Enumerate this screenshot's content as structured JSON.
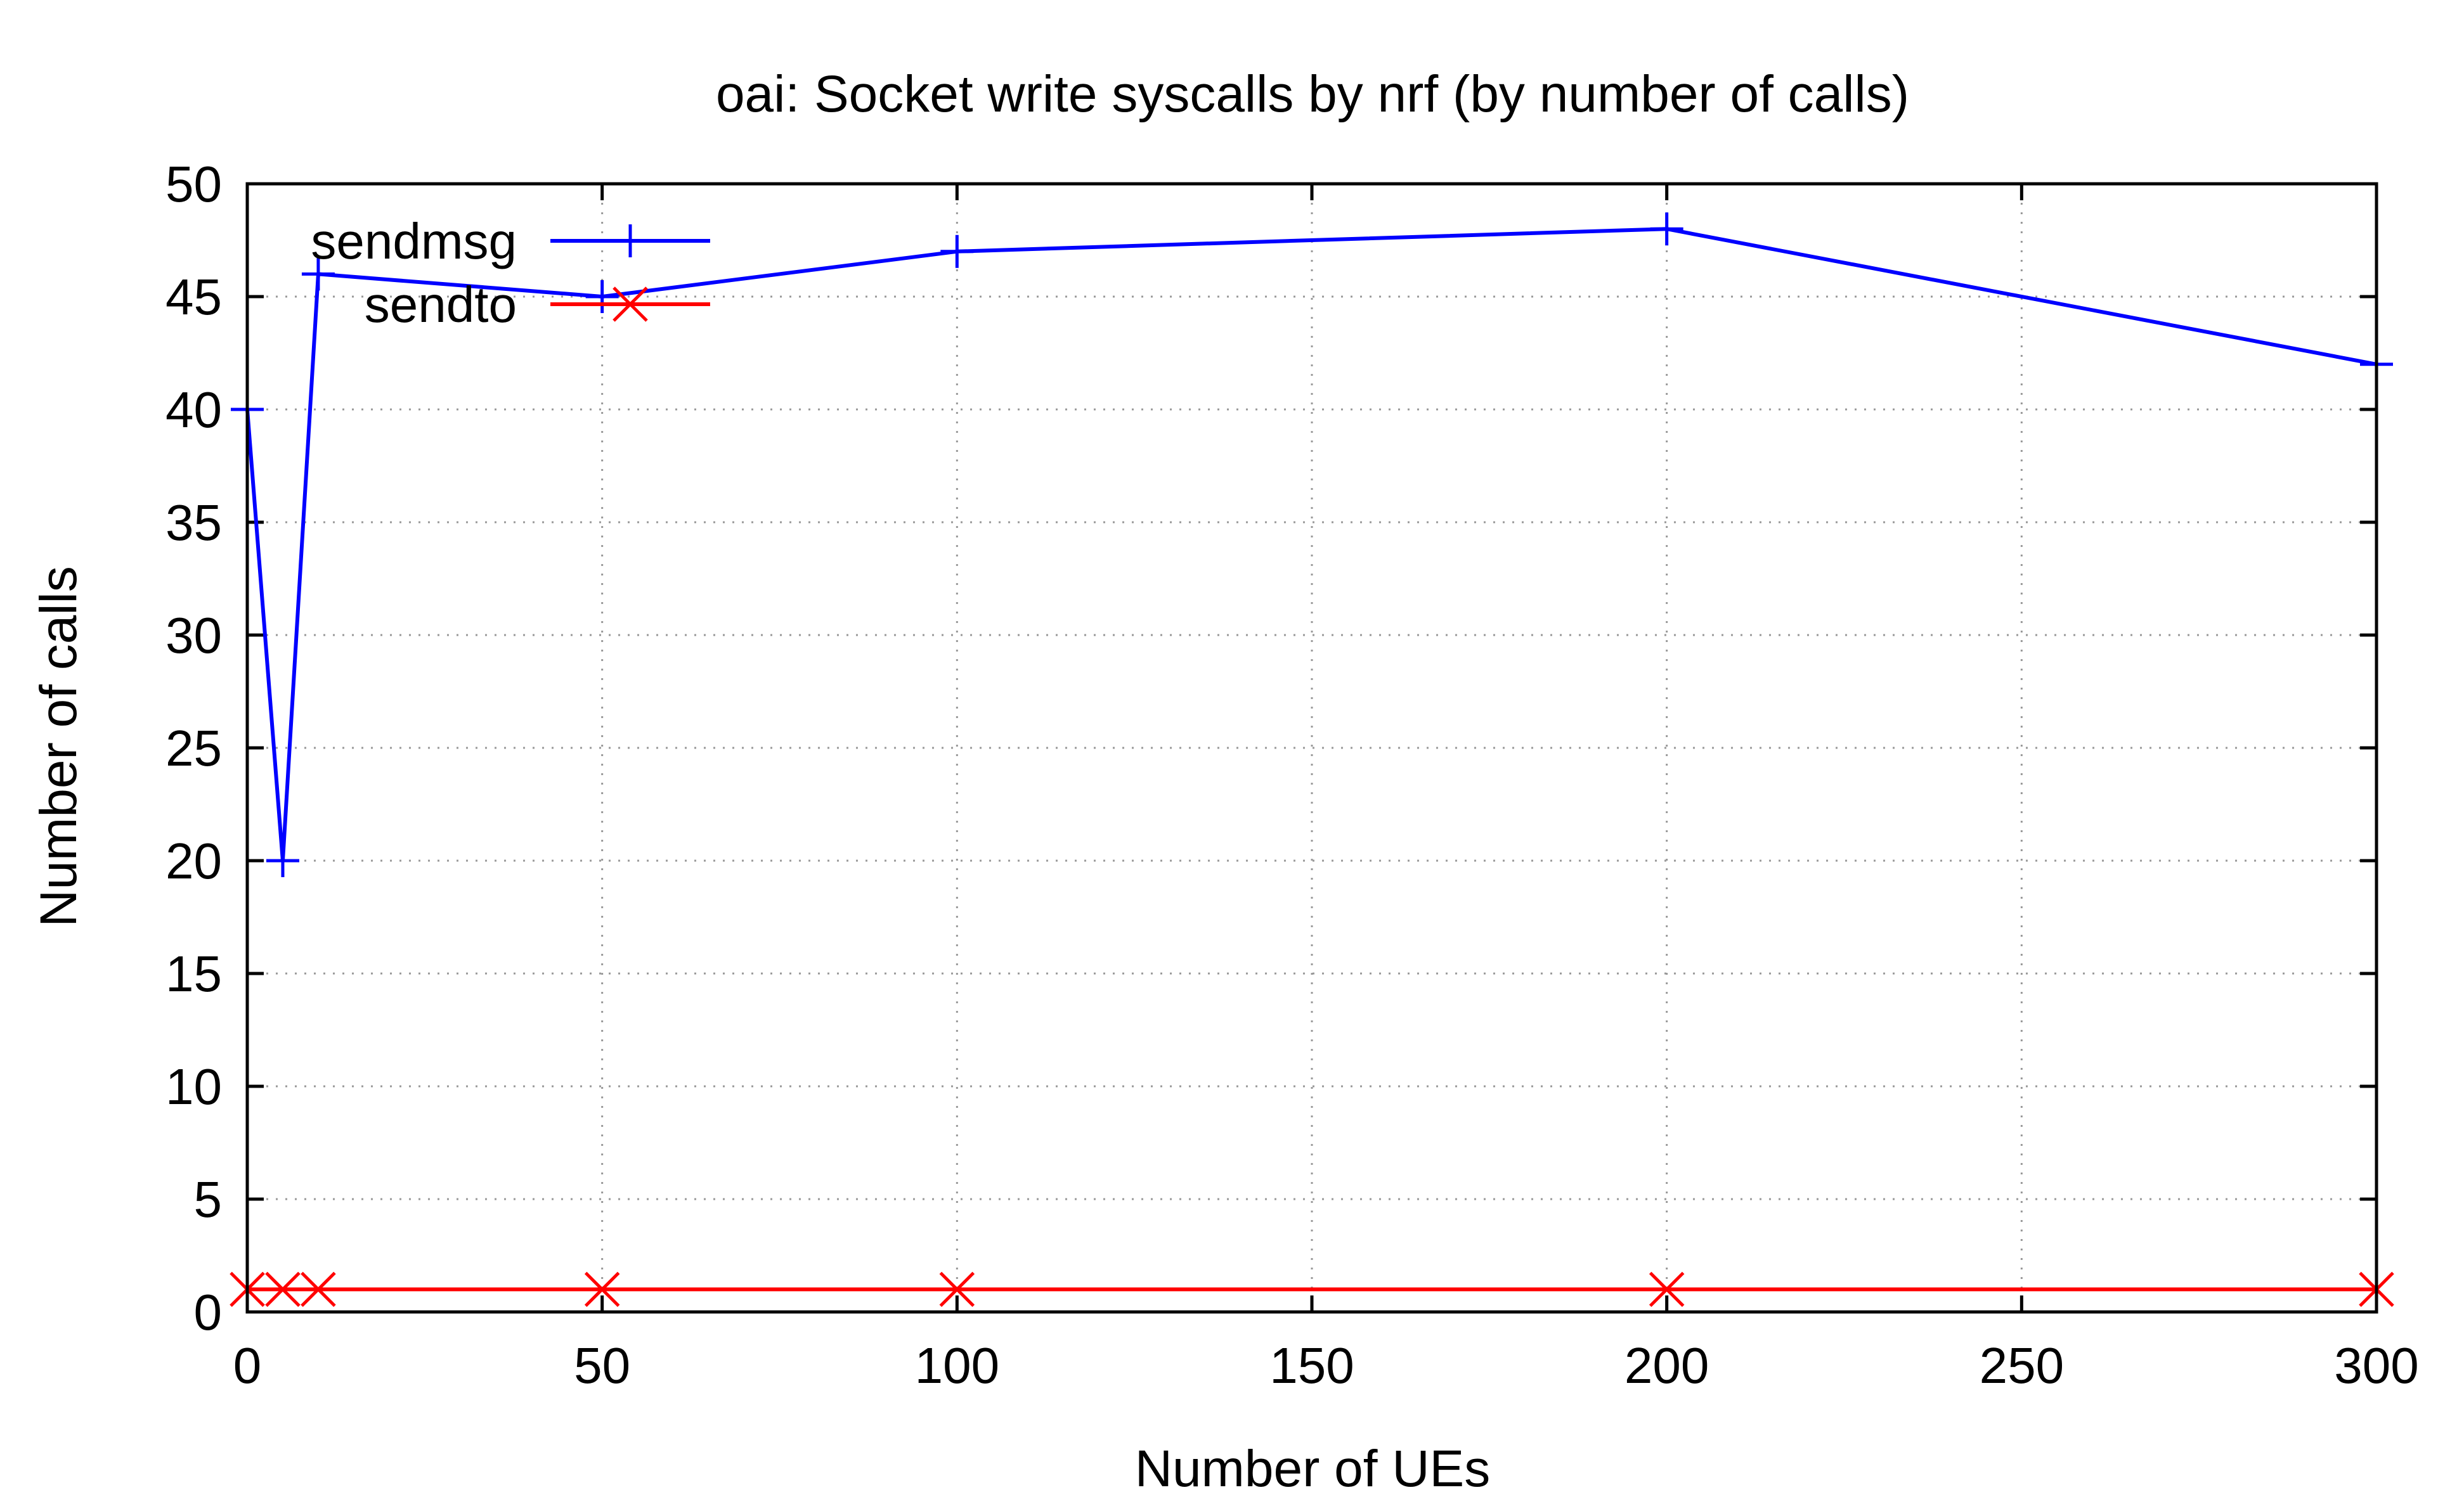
{
  "chart_data": {
    "type": "line",
    "title": "oai: Socket write syscalls by nrf (by number of calls)",
    "xlabel": "Number of UEs",
    "ylabel": "Number of calls",
    "xlim": [
      0,
      300
    ],
    "ylim": [
      0,
      50
    ],
    "xticks": [
      0,
      50,
      100,
      150,
      200,
      250,
      300
    ],
    "yticks": [
      0,
      5,
      10,
      15,
      20,
      25,
      30,
      35,
      40,
      45,
      50
    ],
    "grid": true,
    "legend_position": "top-left",
    "series": [
      {
        "name": "sendmsg",
        "color": "#0000ff",
        "marker": "plus",
        "x": [
          0,
          5,
          10,
          50,
          100,
          200,
          300
        ],
        "y": [
          40,
          20,
          46,
          45,
          47,
          48,
          42
        ]
      },
      {
        "name": "sendto",
        "color": "#ff0000",
        "marker": "cross",
        "x": [
          0,
          5,
          10,
          50,
          100,
          200,
          300
        ],
        "y": [
          1,
          1,
          1,
          1,
          1,
          1,
          1
        ]
      }
    ]
  }
}
